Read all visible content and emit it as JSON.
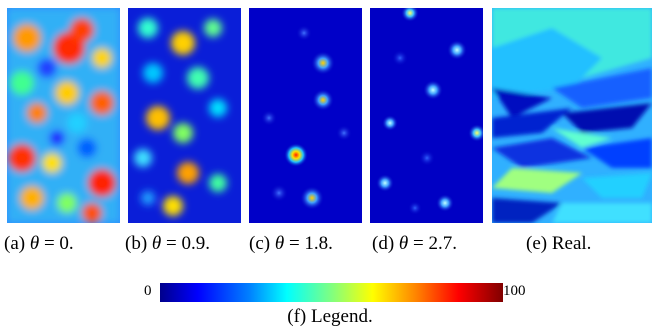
{
  "panels": [
    {
      "id": "a",
      "caption_prefix": "(a) ",
      "theta_symbol": "θ",
      "caption_suffix": " = 0."
    },
    {
      "id": "b",
      "caption_prefix": "(b) ",
      "theta_symbol": "θ",
      "caption_suffix": " = 0.9."
    },
    {
      "id": "c",
      "caption_prefix": "(c) ",
      "theta_symbol": "θ",
      "caption_suffix": " = 1.8."
    },
    {
      "id": "d",
      "caption_prefix": "(d) ",
      "theta_symbol": "θ",
      "caption_suffix": " = 2.7."
    },
    {
      "id": "e",
      "caption": "(e) Real."
    }
  ],
  "legend": {
    "min_label": "0",
    "max_label": "100",
    "caption": "(f) Legend."
  },
  "colors": {
    "dark_blue": "#00008b",
    "blue": "#0000ff",
    "cyan": "#00ffff",
    "yellow": "#ffff00",
    "red": "#ff0000",
    "dark_red": "#800000"
  }
}
